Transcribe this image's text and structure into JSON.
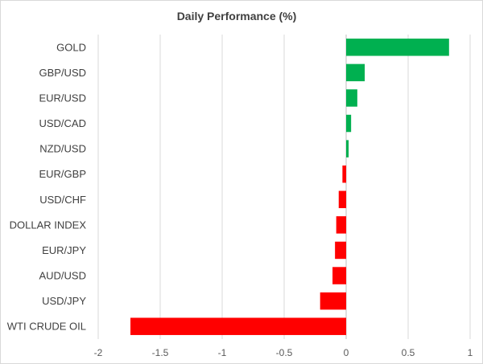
{
  "chart_data": {
    "type": "bar",
    "orientation": "horizontal",
    "title": "Daily Performance (%)",
    "xlabel": "",
    "ylabel": "",
    "xlim": [
      -2,
      1
    ],
    "xticks": [
      -2,
      -1.5,
      -1,
      -0.5,
      0,
      0.5,
      1
    ],
    "xtick_labels": [
      "-2",
      "-1.5",
      "-1",
      "-0.5",
      "0",
      "0.5",
      "1"
    ],
    "grid": true,
    "legend": "none",
    "categories": [
      "GOLD",
      "GBP/USD",
      "EUR/USD",
      "USD/CAD",
      "NZD/USD",
      "EUR/GBP",
      "USD/CHF",
      "DOLLAR INDEX",
      "EUR/JPY",
      "AUD/USD",
      "USD/JPY",
      "WTI CRUDE OIL"
    ],
    "values": [
      0.83,
      0.15,
      0.09,
      0.04,
      0.02,
      -0.03,
      -0.06,
      -0.08,
      -0.09,
      -0.11,
      -0.21,
      -1.74
    ],
    "colors": {
      "positive": "#00b050",
      "negative": "#ff0000"
    }
  }
}
